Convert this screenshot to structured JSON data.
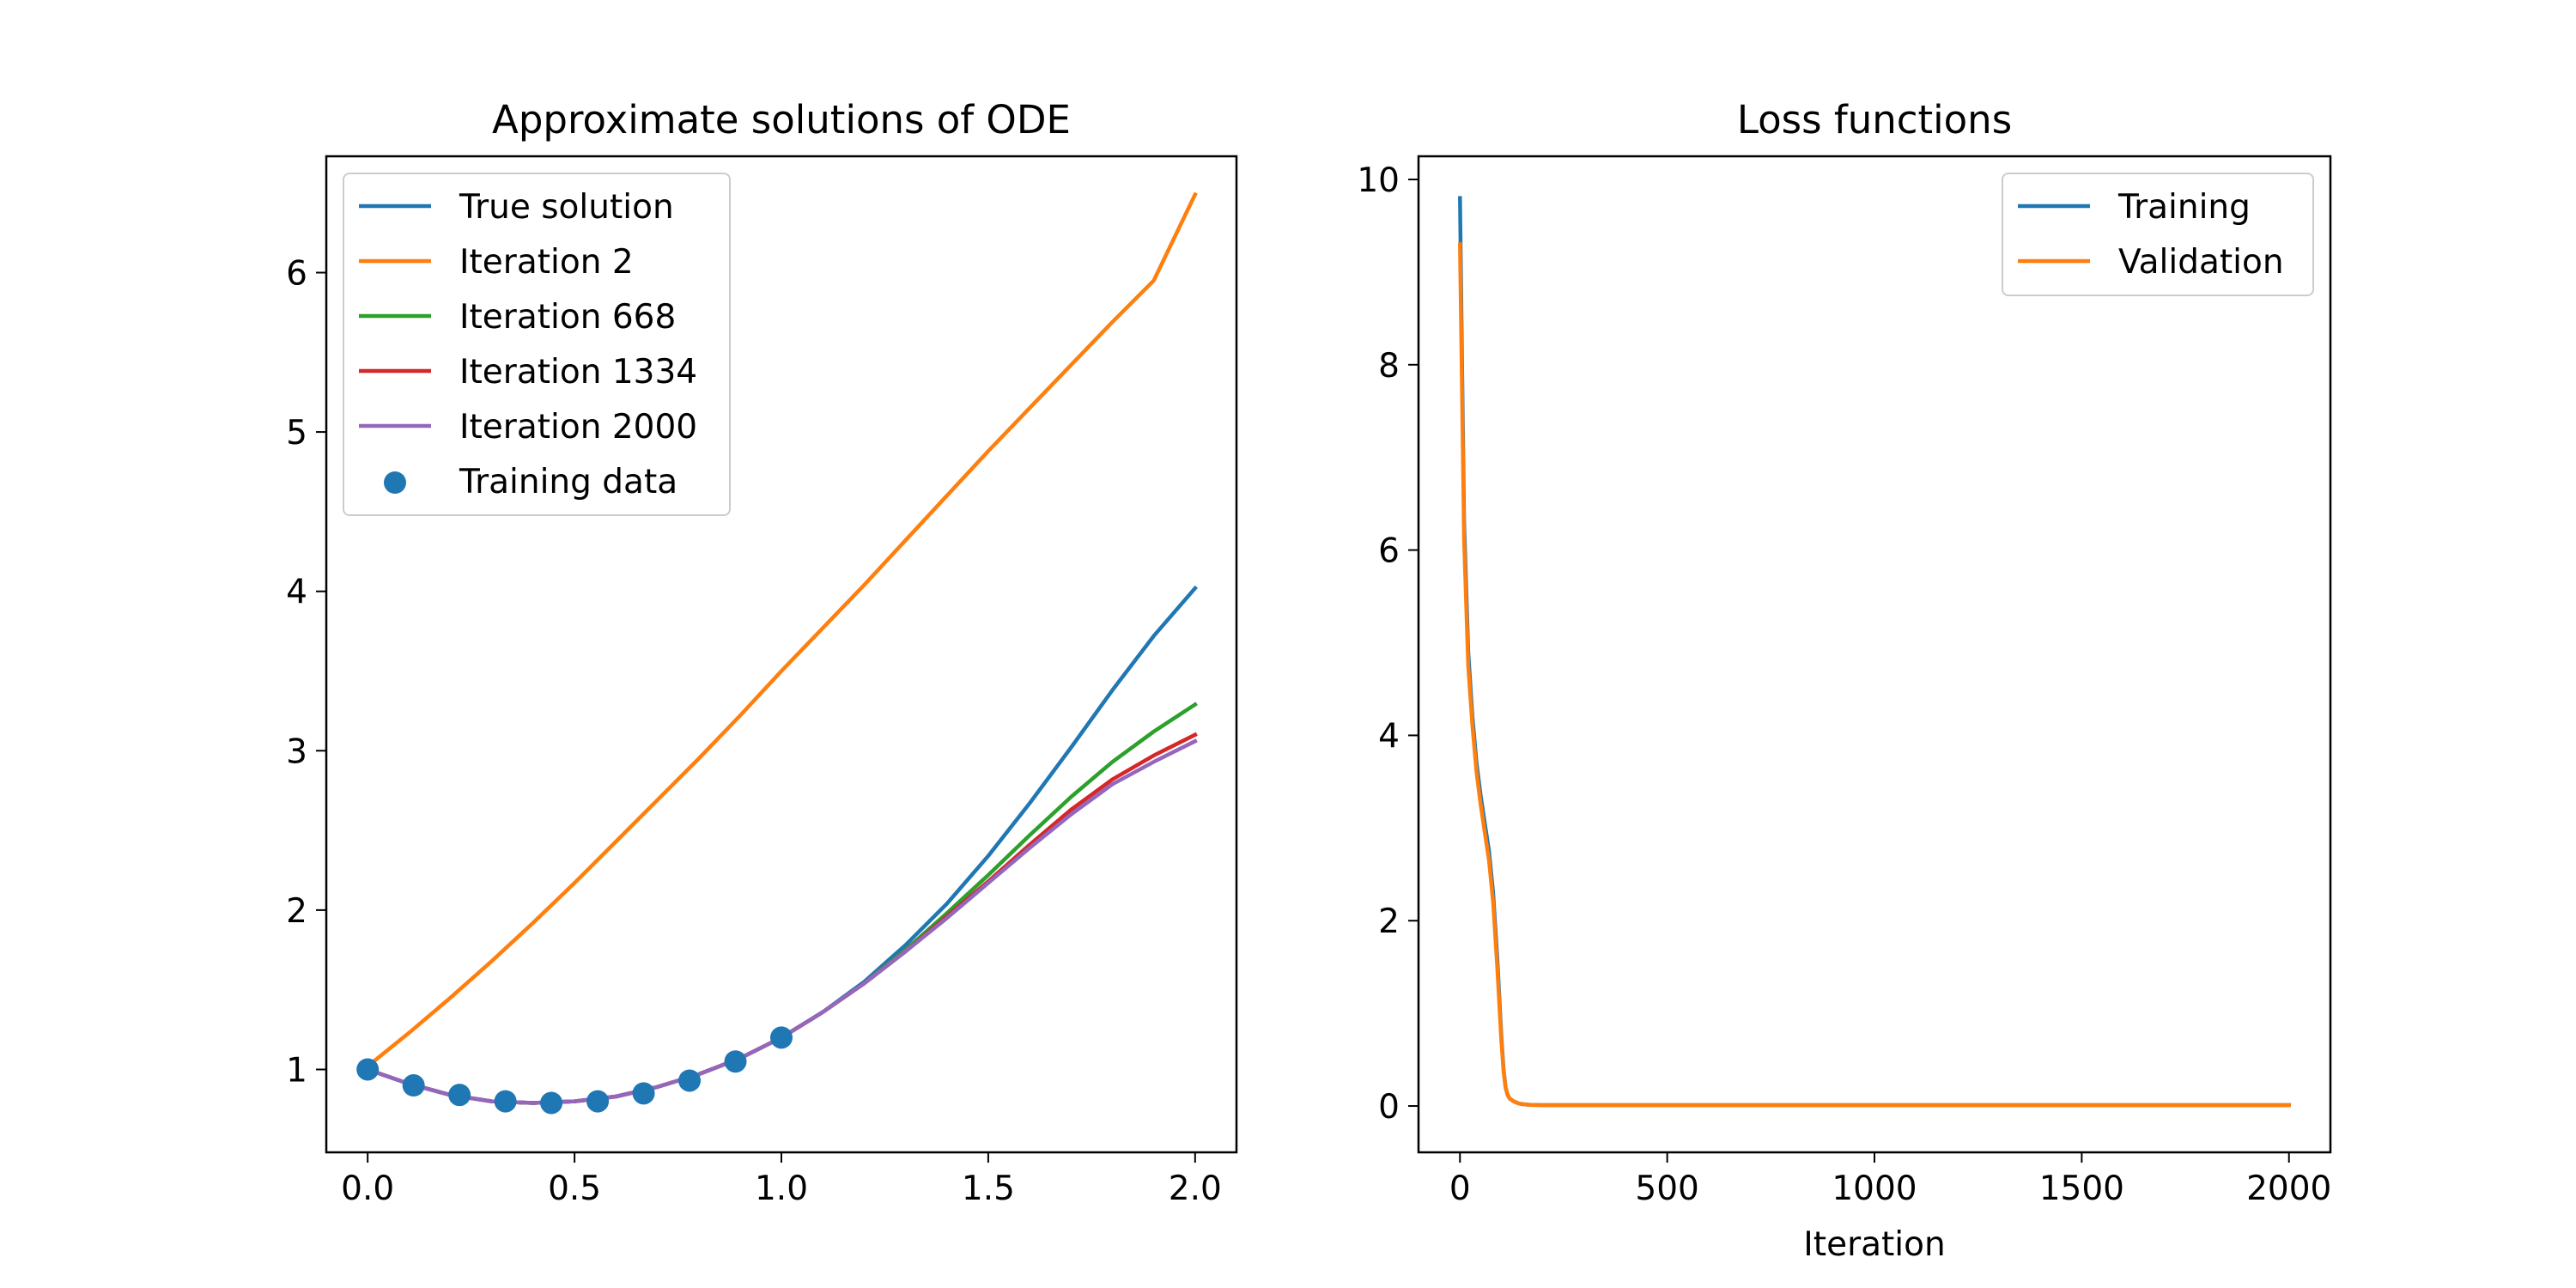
{
  "chart_data": [
    {
      "type": "line",
      "title": "Approximate solutions of ODE",
      "xlabel": "",
      "ylabel": "",
      "xlim": [
        -0.1,
        2.1
      ],
      "ylim": [
        0.48,
        6.73
      ],
      "xticks": [
        0.0,
        0.5,
        1.0,
        1.5,
        2.0
      ],
      "xtick_labels": [
        "0.0",
        "0.5",
        "1.0",
        "1.5",
        "2.0"
      ],
      "yticks": [
        1,
        2,
        3,
        4,
        5,
        6
      ],
      "ytick_labels": [
        "1",
        "2",
        "3",
        "4",
        "5",
        "6"
      ],
      "legend": "top-left",
      "grid": false,
      "series": [
        {
          "name": "True solution",
          "color": "#1f77b4",
          "x": [
            0,
            0.1,
            0.2,
            0.3,
            0.4,
            0.5,
            0.6,
            0.7,
            0.8,
            0.9,
            1.0,
            1.1,
            1.2,
            1.3,
            1.4,
            1.5,
            1.6,
            1.7,
            1.8,
            1.9,
            2.0
          ],
          "y": [
            1.0,
            0.91,
            0.84,
            0.8,
            0.79,
            0.8,
            0.83,
            0.89,
            0.97,
            1.07,
            1.2,
            1.36,
            1.55,
            1.78,
            2.04,
            2.34,
            2.67,
            3.02,
            3.38,
            3.72,
            4.02
          ]
        },
        {
          "name": "Iteration 2",
          "color": "#ff7f0e",
          "x": [
            0,
            0.1,
            0.2,
            0.3,
            0.4,
            0.5,
            0.6,
            0.7,
            0.8,
            0.9,
            1.0,
            1.1,
            1.2,
            1.3,
            1.4,
            1.5,
            1.6,
            1.7,
            1.8,
            1.9,
            2.0
          ],
          "y": [
            1.02,
            1.23,
            1.45,
            1.68,
            1.92,
            2.17,
            2.43,
            2.69,
            2.95,
            3.22,
            3.5,
            3.77,
            4.04,
            4.32,
            4.6,
            4.88,
            5.15,
            5.42,
            5.69,
            5.95,
            6.49
          ]
        },
        {
          "name": "Iteration 668",
          "color": "#2ca02c",
          "x": [
            0,
            0.1,
            0.2,
            0.3,
            0.4,
            0.5,
            0.6,
            0.7,
            0.8,
            0.9,
            1.0,
            1.1,
            1.2,
            1.3,
            1.4,
            1.5,
            1.6,
            1.7,
            1.8,
            1.9,
            2.0
          ],
          "y": [
            1.0,
            0.91,
            0.84,
            0.8,
            0.79,
            0.8,
            0.83,
            0.89,
            0.97,
            1.07,
            1.2,
            1.36,
            1.54,
            1.75,
            1.98,
            2.22,
            2.47,
            2.71,
            2.93,
            3.12,
            3.29
          ]
        },
        {
          "name": "Iteration 1334",
          "color": "#d62728",
          "x": [
            0,
            0.1,
            0.2,
            0.3,
            0.4,
            0.5,
            0.6,
            0.7,
            0.8,
            0.9,
            1.0,
            1.1,
            1.2,
            1.3,
            1.4,
            1.5,
            1.6,
            1.7,
            1.8,
            1.9,
            2.0
          ],
          "y": [
            1.0,
            0.91,
            0.84,
            0.8,
            0.79,
            0.8,
            0.83,
            0.89,
            0.97,
            1.07,
            1.2,
            1.36,
            1.54,
            1.74,
            1.96,
            2.18,
            2.41,
            2.63,
            2.82,
            2.97,
            3.1
          ]
        },
        {
          "name": "Iteration 2000",
          "color": "#9467bd",
          "x": [
            0,
            0.1,
            0.2,
            0.3,
            0.4,
            0.5,
            0.6,
            0.7,
            0.8,
            0.9,
            1.0,
            1.1,
            1.2,
            1.3,
            1.4,
            1.5,
            1.6,
            1.7,
            1.8,
            1.9,
            2.0
          ],
          "y": [
            1.0,
            0.91,
            0.84,
            0.8,
            0.79,
            0.8,
            0.83,
            0.89,
            0.97,
            1.07,
            1.2,
            1.36,
            1.54,
            1.74,
            1.95,
            2.17,
            2.39,
            2.6,
            2.79,
            2.93,
            3.06
          ]
        }
      ],
      "scatter": {
        "name": "Training data",
        "color": "#1f77b4",
        "x": [
          0.0,
          0.111,
          0.222,
          0.333,
          0.444,
          0.556,
          0.667,
          0.778,
          0.889,
          1.0
        ],
        "y": [
          1.0,
          0.9,
          0.84,
          0.8,
          0.79,
          0.8,
          0.85,
          0.93,
          1.05,
          1.2
        ]
      }
    },
    {
      "type": "line",
      "title": "Loss functions",
      "xlabel": "Iteration",
      "ylabel": "",
      "xlim": [
        -100,
        2100
      ],
      "ylim": [
        -0.5,
        10.25
      ],
      "xticks": [
        0,
        500,
        1000,
        1500,
        2000
      ],
      "xtick_labels": [
        "0",
        "500",
        "1000",
        "1500",
        "2000"
      ],
      "yticks": [
        0,
        2,
        4,
        6,
        8,
        10
      ],
      "ytick_labels": [
        "0",
        "2",
        "4",
        "6",
        "8",
        "10"
      ],
      "legend": "top-right",
      "grid": false,
      "series": [
        {
          "name": "Training",
          "color": "#1f77b4",
          "x": [
            0,
            5,
            10,
            20,
            30,
            40,
            50,
            60,
            70,
            80,
            90,
            100,
            105,
            110,
            115,
            120,
            130,
            140,
            150,
            170,
            200,
            250,
            300,
            500,
            1000,
            1500,
            2000
          ],
          "y": [
            9.8,
            8.0,
            6.3,
            4.9,
            4.2,
            3.7,
            3.35,
            3.05,
            2.75,
            2.3,
            1.6,
            0.75,
            0.4,
            0.2,
            0.12,
            0.08,
            0.05,
            0.03,
            0.02,
            0.012,
            0.01,
            0.01,
            0.01,
            0.01,
            0.01,
            0.01,
            0.01
          ]
        },
        {
          "name": "Validation",
          "color": "#ff7f0e",
          "x": [
            0,
            5,
            10,
            20,
            30,
            40,
            50,
            60,
            70,
            80,
            90,
            100,
            105,
            110,
            115,
            120,
            130,
            140,
            150,
            170,
            200,
            250,
            300,
            500,
            1000,
            1500,
            2000
          ],
          "y": [
            9.3,
            7.7,
            6.1,
            4.75,
            4.1,
            3.6,
            3.25,
            2.95,
            2.65,
            2.2,
            1.5,
            0.7,
            0.38,
            0.2,
            0.12,
            0.08,
            0.05,
            0.03,
            0.02,
            0.012,
            0.01,
            0.01,
            0.01,
            0.01,
            0.01,
            0.01,
            0.01
          ]
        }
      ]
    }
  ]
}
